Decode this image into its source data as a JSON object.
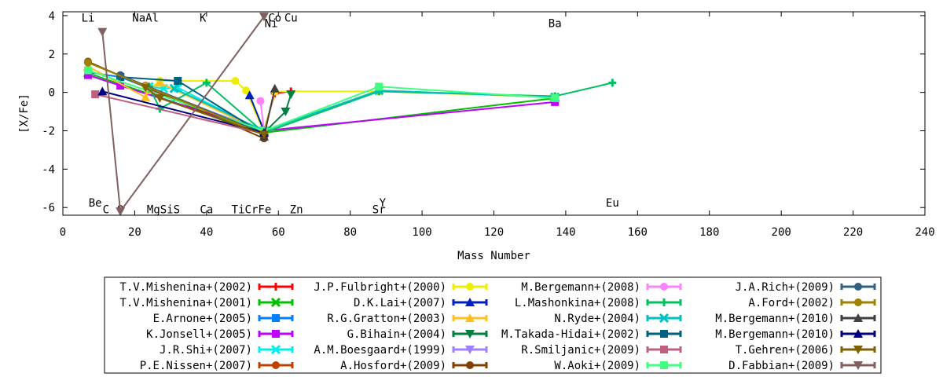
{
  "chart_data": {
    "type": "line",
    "title": "",
    "xlabel": "Mass Number",
    "ylabel": "[X/Fe]",
    "xlim": [
      0,
      240
    ],
    "ylim": [
      -6.4,
      4.2
    ],
    "xticks": [
      0,
      20,
      40,
      60,
      80,
      100,
      120,
      140,
      160,
      180,
      200,
      220,
      240
    ],
    "yticks": [
      -6,
      -4,
      -2,
      0,
      2,
      4
    ],
    "grid": false,
    "legend_position": "bottom",
    "legend_columns": 4,
    "element_labels": [
      {
        "text": "Li",
        "x": 7,
        "y": 3.9
      },
      {
        "text": "NaAl",
        "x": 23,
        "y": 3.9
      },
      {
        "text": "K",
        "x": 39,
        "y": 3.9
      },
      {
        "text": "Co",
        "x": 59,
        "y": 3.9
      },
      {
        "text": "Cu",
        "x": 63.5,
        "y": 3.9
      },
      {
        "text": "Ni",
        "x": 58,
        "y": 3.6
      },
      {
        "text": "Ba",
        "x": 137,
        "y": 3.6
      },
      {
        "text": "Be",
        "x": 9,
        "y": -5.75
      },
      {
        "text": "C",
        "x": 12,
        "y": -6.1
      },
      {
        "text": "O",
        "x": 16,
        "y": -6.1
      },
      {
        "text": "MgSiS",
        "x": 28,
        "y": -6.1
      },
      {
        "text": "Ca",
        "x": 40,
        "y": -6.1
      },
      {
        "text": "TiCrFe",
        "x": 52.5,
        "y": -6.1
      },
      {
        "text": "Zn",
        "x": 65,
        "y": -6.1
      },
      {
        "text": "Y",
        "x": 89,
        "y": -5.75
      },
      {
        "text": "Sr",
        "x": 88,
        "y": -6.1
      },
      {
        "text": "Eu",
        "x": 153,
        "y": -5.75
      }
    ],
    "series": [
      {
        "name": "T.V.Mishenina+(2002)",
        "color": "#ff0000",
        "marker": "plus",
        "x": [
          56,
          59,
          63.5
        ],
        "y": [
          -2.0,
          -0.05,
          0.05
        ]
      },
      {
        "name": "T.V.Mishenina+(2001)",
        "color": "#00c000",
        "marker": "cross",
        "x": [
          7,
          56,
          137
        ],
        "y": [
          1.0,
          -2.1,
          -0.3
        ]
      },
      {
        "name": "E.Arnone+(2005)",
        "color": "#0080ff",
        "marker": "square",
        "x": [
          7,
          16,
          56
        ],
        "y": [
          1.05,
          0.8,
          -2.1
        ]
      },
      {
        "name": "K.Jonsell+(2005)",
        "color": "#c000ff",
        "marker": "square",
        "x": [
          7,
          16,
          56,
          137
        ],
        "y": [
          0.9,
          0.35,
          -2.0,
          -0.5
        ]
      },
      {
        "name": "J.R.Shi+(2007)",
        "color": "#00eeee",
        "marker": "cross",
        "x": [
          24,
          28,
          32,
          56
        ],
        "y": [
          0.3,
          0.2,
          0.25,
          -2.05
        ]
      },
      {
        "name": "P.E.Nissen+(2007)",
        "color": "#c04000",
        "marker": "circle",
        "x": [
          23,
          56
        ],
        "y": [
          0.35,
          -2.1
        ]
      },
      {
        "name": "J.P.Fulbright+(2000)",
        "color": "#eeee00",
        "marker": "circle",
        "x": [
          23,
          24,
          27,
          48,
          51,
          56,
          59,
          88,
          137
        ],
        "y": [
          0.3,
          0.1,
          0.6,
          0.6,
          0.1,
          -2.1,
          0.05,
          0.05,
          -0.25
        ]
      },
      {
        "name": "D.K.Lai+(2007)",
        "color": "#0020c0",
        "marker": "triangle",
        "x": [
          52,
          56
        ],
        "y": [
          -0.15,
          -2.0
        ]
      },
      {
        "name": "R.G.Gratton+(2003)",
        "color": "#ffc020",
        "marker": "triangle",
        "x": [
          7,
          23,
          24,
          27,
          56
        ],
        "y": [
          1.35,
          -0.25,
          0.2,
          0.5,
          -2.1
        ]
      },
      {
        "name": "G.Bihain+(2004)",
        "color": "#008040",
        "marker": "triangle-down",
        "x": [
          56,
          62,
          63.5
        ],
        "y": [
          -2.1,
          -1.0,
          -0.1
        ]
      },
      {
        "name": "A.M.Boesgaard+(1999)",
        "color": "#a080ff",
        "marker": "triangle-down",
        "x": [
          24,
          56
        ],
        "y": [
          0.15,
          -2.0
        ]
      },
      {
        "name": "A.Hosford+(2009)",
        "color": "#804000",
        "marker": "circle",
        "x": [
          7,
          56
        ],
        "y": [
          1.6,
          -2.4
        ]
      },
      {
        "name": "M.Bergemann+(2008)",
        "color": "#ff80ff",
        "marker": "circle",
        "x": [
          56,
          55
        ],
        "y": [
          -2.0,
          -0.45
        ]
      },
      {
        "name": "L.Mashonkina+(2008)",
        "color": "#00c060",
        "marker": "plus",
        "x": [
          24,
          27,
          40,
          56,
          88,
          137,
          153
        ],
        "y": [
          0.3,
          -0.85,
          0.5,
          -2.1,
          0.05,
          -0.2,
          0.5
        ]
      },
      {
        "name": "N.Ryde+(2004)",
        "color": "#00c0c0",
        "marker": "cross",
        "x": [
          31,
          56,
          88,
          137
        ],
        "y": [
          0.2,
          -2.0,
          0.1,
          -0.25
        ]
      },
      {
        "name": "M.Takada-Hidai+(2002)",
        "color": "#006080",
        "marker": "square",
        "x": [
          16,
          32,
          56
        ],
        "y": [
          0.8,
          0.6,
          -2.2
        ]
      },
      {
        "name": "R.Smiljanic+(2009)",
        "color": "#c06080",
        "marker": "square",
        "x": [
          9,
          56
        ],
        "y": [
          -0.1,
          -2.15
        ]
      },
      {
        "name": "W.Aoki+(2009)",
        "color": "#40ff80",
        "marker": "square",
        "x": [
          7,
          56,
          88,
          137
        ],
        "y": [
          1.15,
          -2.0,
          0.3,
          -0.3
        ]
      },
      {
        "name": "J.A.Rich+(2009)",
        "color": "#306080",
        "marker": "circle",
        "x": [
          16,
          56
        ],
        "y": [
          0.9,
          -2.15
        ]
      },
      {
        "name": "A.Ford+(2002)",
        "color": "#a08000",
        "marker": "circle",
        "x": [
          7,
          56
        ],
        "y": [
          1.55,
          -2.2
        ]
      },
      {
        "name": "M.Bergemann+(2010)",
        "color": "#404040",
        "marker": "triangle",
        "x": [
          56,
          59
        ],
        "y": [
          -2.3,
          0.2
        ]
      },
      {
        "name": "M.Bergemann+(2010)",
        "color": "#000080",
        "marker": "triangle",
        "x": [
          11,
          56
        ],
        "y": [
          0.05,
          -2.1
        ]
      },
      {
        "name": "T.Gehren+(2006)",
        "color": "#806000",
        "marker": "triangle-down",
        "x": [
          23,
          27,
          56
        ],
        "y": [
          0.25,
          -0.3,
          -2.2
        ]
      },
      {
        "name": "D.Fabbian+(2009)",
        "color": "#806060",
        "marker": "triangle-down",
        "x": [
          11,
          16,
          56
        ],
        "y": [
          3.15,
          -6.2,
          3.95
        ]
      }
    ]
  }
}
